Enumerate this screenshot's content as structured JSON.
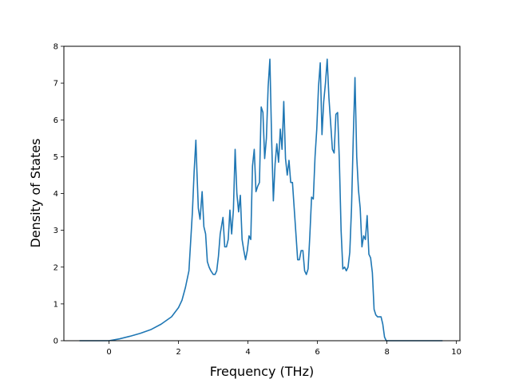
{
  "chart_data": {
    "type": "line",
    "title": "",
    "xlabel": "Frequency (THz)",
    "ylabel": "Density of States",
    "xlim": [
      -1.3,
      10.1
    ],
    "ylim": [
      0,
      8
    ],
    "xticks": [
      0,
      2,
      4,
      6,
      8,
      10
    ],
    "yticks": [
      0,
      1,
      2,
      3,
      4,
      5,
      6,
      7,
      8
    ],
    "grid": false,
    "legend": "none",
    "series": [
      {
        "color": "#1f77b4",
        "x": [
          -0.85,
          0.0,
          0.3,
          0.6,
          0.9,
          1.2,
          1.5,
          1.8,
          2.0,
          2.1,
          2.2,
          2.3,
          2.4,
          2.45,
          2.5,
          2.53,
          2.57,
          2.62,
          2.68,
          2.73,
          2.78,
          2.83,
          2.88,
          2.93,
          3.0,
          3.05,
          3.1,
          3.15,
          3.2,
          3.28,
          3.33,
          3.38,
          3.43,
          3.48,
          3.53,
          3.58,
          3.63,
          3.68,
          3.73,
          3.78,
          3.83,
          3.88,
          3.93,
          3.98,
          4.03,
          4.08,
          4.13,
          4.18,
          4.23,
          4.28,
          4.33,
          4.38,
          4.43,
          4.48,
          4.53,
          4.58,
          4.63,
          4.68,
          4.73,
          4.78,
          4.83,
          4.88,
          4.93,
          4.98,
          5.03,
          5.08,
          5.13,
          5.18,
          5.23,
          5.28,
          5.33,
          5.38,
          5.43,
          5.48,
          5.53,
          5.58,
          5.63,
          5.68,
          5.73,
          5.78,
          5.83,
          5.88,
          5.93,
          5.98,
          6.03,
          6.08,
          6.13,
          6.18,
          6.23,
          6.28,
          6.33,
          6.38,
          6.43,
          6.48,
          6.53,
          6.58,
          6.63,
          6.68,
          6.73,
          6.78,
          6.83,
          6.88,
          6.93,
          6.98,
          7.03,
          7.08,
          7.13,
          7.18,
          7.23,
          7.28,
          7.33,
          7.38,
          7.43,
          7.48,
          7.53,
          7.58,
          7.63,
          7.68,
          7.73,
          7.78,
          7.83,
          7.88,
          7.93,
          7.98,
          8.03,
          8.08,
          8.2,
          8.4,
          8.6,
          8.65,
          8.7,
          8.75,
          8.8,
          9.6
        ],
        "y": [
          0.0,
          0.0,
          0.05,
          0.12,
          0.2,
          0.3,
          0.45,
          0.65,
          0.9,
          1.1,
          1.45,
          1.9,
          3.5,
          4.6,
          5.45,
          4.6,
          3.6,
          3.3,
          4.05,
          3.1,
          2.9,
          2.15,
          2.0,
          1.9,
          1.8,
          1.8,
          1.9,
          2.3,
          2.9,
          3.35,
          2.55,
          2.55,
          2.75,
          3.55,
          2.9,
          3.55,
          5.2,
          4.0,
          3.5,
          3.95,
          2.75,
          2.45,
          2.2,
          2.45,
          2.85,
          2.75,
          4.75,
          5.2,
          4.05,
          4.2,
          4.3,
          6.35,
          6.2,
          4.95,
          5.5,
          6.9,
          7.65,
          5.5,
          3.8,
          4.8,
          5.35,
          4.85,
          5.75,
          5.2,
          6.5,
          4.95,
          4.5,
          4.9,
          4.3,
          4.3,
          3.6,
          2.9,
          2.2,
          2.2,
          2.45,
          2.45,
          1.9,
          1.8,
          1.95,
          2.85,
          3.9,
          3.85,
          5.0,
          5.75,
          6.9,
          7.55,
          5.6,
          6.5,
          7.0,
          7.65,
          6.6,
          5.9,
          5.2,
          5.1,
          6.15,
          6.2,
          4.9,
          3.0,
          1.95,
          2.0,
          1.9,
          2.0,
          2.4,
          3.6,
          5.5,
          7.15,
          5.0,
          4.1,
          3.6,
          2.55,
          2.85,
          2.75,
          3.4,
          2.35,
          2.25,
          1.85,
          0.85,
          0.7,
          0.65,
          0.65,
          0.65,
          0.45,
          0.1,
          0.0,
          0.0,
          0.0,
          0.0,
          0.0,
          0.0,
          0.0,
          0.0,
          0.0,
          0.0,
          0.0
        ]
      }
    ]
  }
}
